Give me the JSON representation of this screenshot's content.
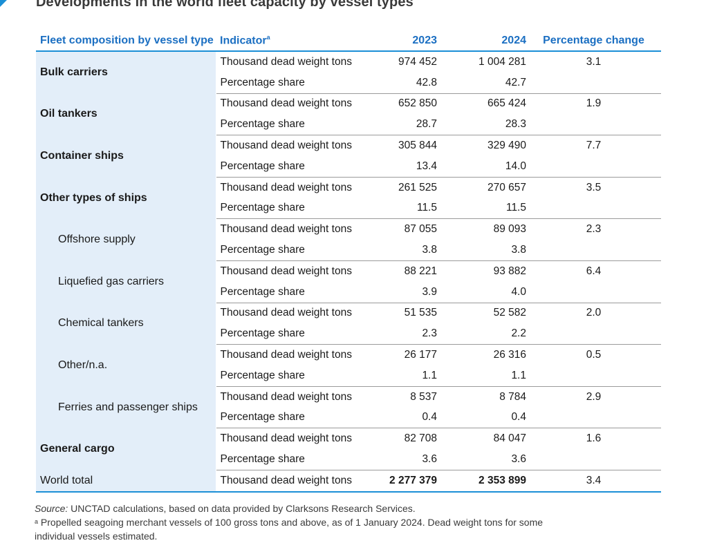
{
  "title": "Developments in the world fleet capacity by vessel types",
  "accent_color": "#1b8fd6",
  "band_color": "#e3eef9",
  "headers": {
    "category": "Fleet composition by vessel type",
    "indicator": "Indicator",
    "indicator_marker": "a",
    "y2023": "2023",
    "y2024": "2024",
    "change": "Percentage change"
  },
  "groups": [
    {
      "name": "Bulk carriers",
      "sub": false,
      "dwt_label": "Thousand dead weight tons",
      "share_label": "Percentage share",
      "dwt_2023": "974 452",
      "dwt_2024": "1 004 281",
      "change": "3.1",
      "share_2023": "42.8",
      "share_2024": "42.7"
    },
    {
      "name": "Oil tankers",
      "sub": false,
      "dwt_label": "Thousand dead weight tons",
      "share_label": "Percentage share",
      "dwt_2023": "652 850",
      "dwt_2024": "665 424",
      "change": "1.9",
      "share_2023": "28.7",
      "share_2024": "28.3"
    },
    {
      "name": "Container ships",
      "sub": false,
      "dwt_label": "Thousand dead weight tons",
      "share_label": "Percentage share",
      "dwt_2023": "305 844",
      "dwt_2024": "329 490",
      "change": "7.7",
      "share_2023": "13.4",
      "share_2024": "14.0"
    },
    {
      "name": "Other types of ships",
      "sub": false,
      "dwt_label": "Thousand dead weight tons",
      "share_label": "Percentage share",
      "dwt_2023": "261 525",
      "dwt_2024": "270 657",
      "change": "3.5",
      "share_2023": "11.5",
      "share_2024": "11.5"
    },
    {
      "name": "Offshore supply",
      "sub": true,
      "dwt_label": "Thousand dead weight tons",
      "share_label": "Percentage share",
      "dwt_2023": "87 055",
      "dwt_2024": "89 093",
      "change": "2.3",
      "share_2023": "3.8",
      "share_2024": "3.8"
    },
    {
      "name": "Liquefied gas carriers",
      "sub": true,
      "dwt_label": "Thousand dead weight tons",
      "share_label": "Percentage share",
      "dwt_2023": "88 221",
      "dwt_2024": "93 882",
      "change": "6.4",
      "share_2023": "3.9",
      "share_2024": "4.0"
    },
    {
      "name": "Chemical tankers",
      "sub": true,
      "dwt_label": "Thousand dead weight tons",
      "share_label": "Percentage share",
      "dwt_2023": "51 535",
      "dwt_2024": "52 582",
      "change": "2.0",
      "share_2023": "2.3",
      "share_2024": "2.2"
    },
    {
      "name": "Other/n.a.",
      "sub": true,
      "dwt_label": "Thousand dead weight tons",
      "share_label": "Percentage share",
      "dwt_2023": "26 177",
      "dwt_2024": "26 316",
      "change": "0.5",
      "share_2023": "1.1",
      "share_2024": "1.1"
    },
    {
      "name": "Ferries and passenger ships",
      "sub": true,
      "dwt_label": "Thousand dead weight tons",
      "share_label": "Percentage share",
      "dwt_2023": "8 537",
      "dwt_2024": "8 784",
      "change": "2.9",
      "share_2023": "0.4",
      "share_2024": "0.4"
    },
    {
      "name": "General cargo",
      "sub": false,
      "dwt_label": "Thousand dead weight tons",
      "share_label": "Percentage share",
      "dwt_2023": "82 708",
      "dwt_2024": "84 047",
      "change": "1.6",
      "share_2023": "3.6",
      "share_2024": "3.6"
    }
  ],
  "total": {
    "name": "World total",
    "indicator": "Thousand dead weight tons",
    "v2023": "2 277 379",
    "v2024": "2 353 899",
    "change": "3.4"
  },
  "notes": {
    "source_label": "Source:",
    "source_text": " UNCTAD calculations, based on data provided by Clarksons Research Services.",
    "footnote_marker": "a",
    "footnote_text": " Propelled seagoing merchant vessels of 100 gross tons and above, as of 1 January 2024. Dead weight tons for some individual vessels estimated."
  }
}
